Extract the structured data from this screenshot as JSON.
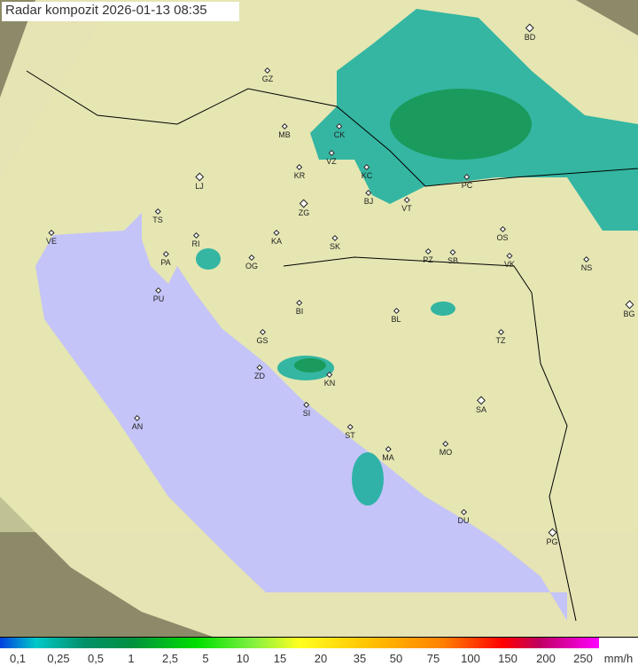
{
  "title": "Radar kompozit  2026-01-13   08:35",
  "cities": [
    "GZ",
    "MB",
    "CK",
    "KR",
    "VZ",
    "KC",
    "BJ",
    "VT",
    "PC",
    "BD",
    "LJ",
    "TS",
    "VE",
    "ZG",
    "KA",
    "SK",
    "OS",
    "VK",
    "NS",
    "BG",
    "RI",
    "PA",
    "OG",
    "PZ",
    "SB",
    "PU",
    "BI",
    "BL",
    "TZ",
    "GS",
    "ZD",
    "KN",
    "SA",
    "AN",
    "SI",
    "ST",
    "MA",
    "MO",
    "DU",
    "PG"
  ],
  "legend": {
    "labels": [
      "0,1",
      "0,25",
      "0,5",
      "1",
      "2,5",
      "5",
      "10",
      "15",
      "20",
      "35",
      "50",
      "75",
      "100",
      "150",
      "200",
      "250"
    ],
    "unit": "mm/h"
  },
  "colors": {
    "sea": "#c4c4f8",
    "land": "#e8e6b0",
    "outside": "#8c8a68",
    "rain_low": "#20b0a0",
    "rain_mid": "#10a040"
  }
}
